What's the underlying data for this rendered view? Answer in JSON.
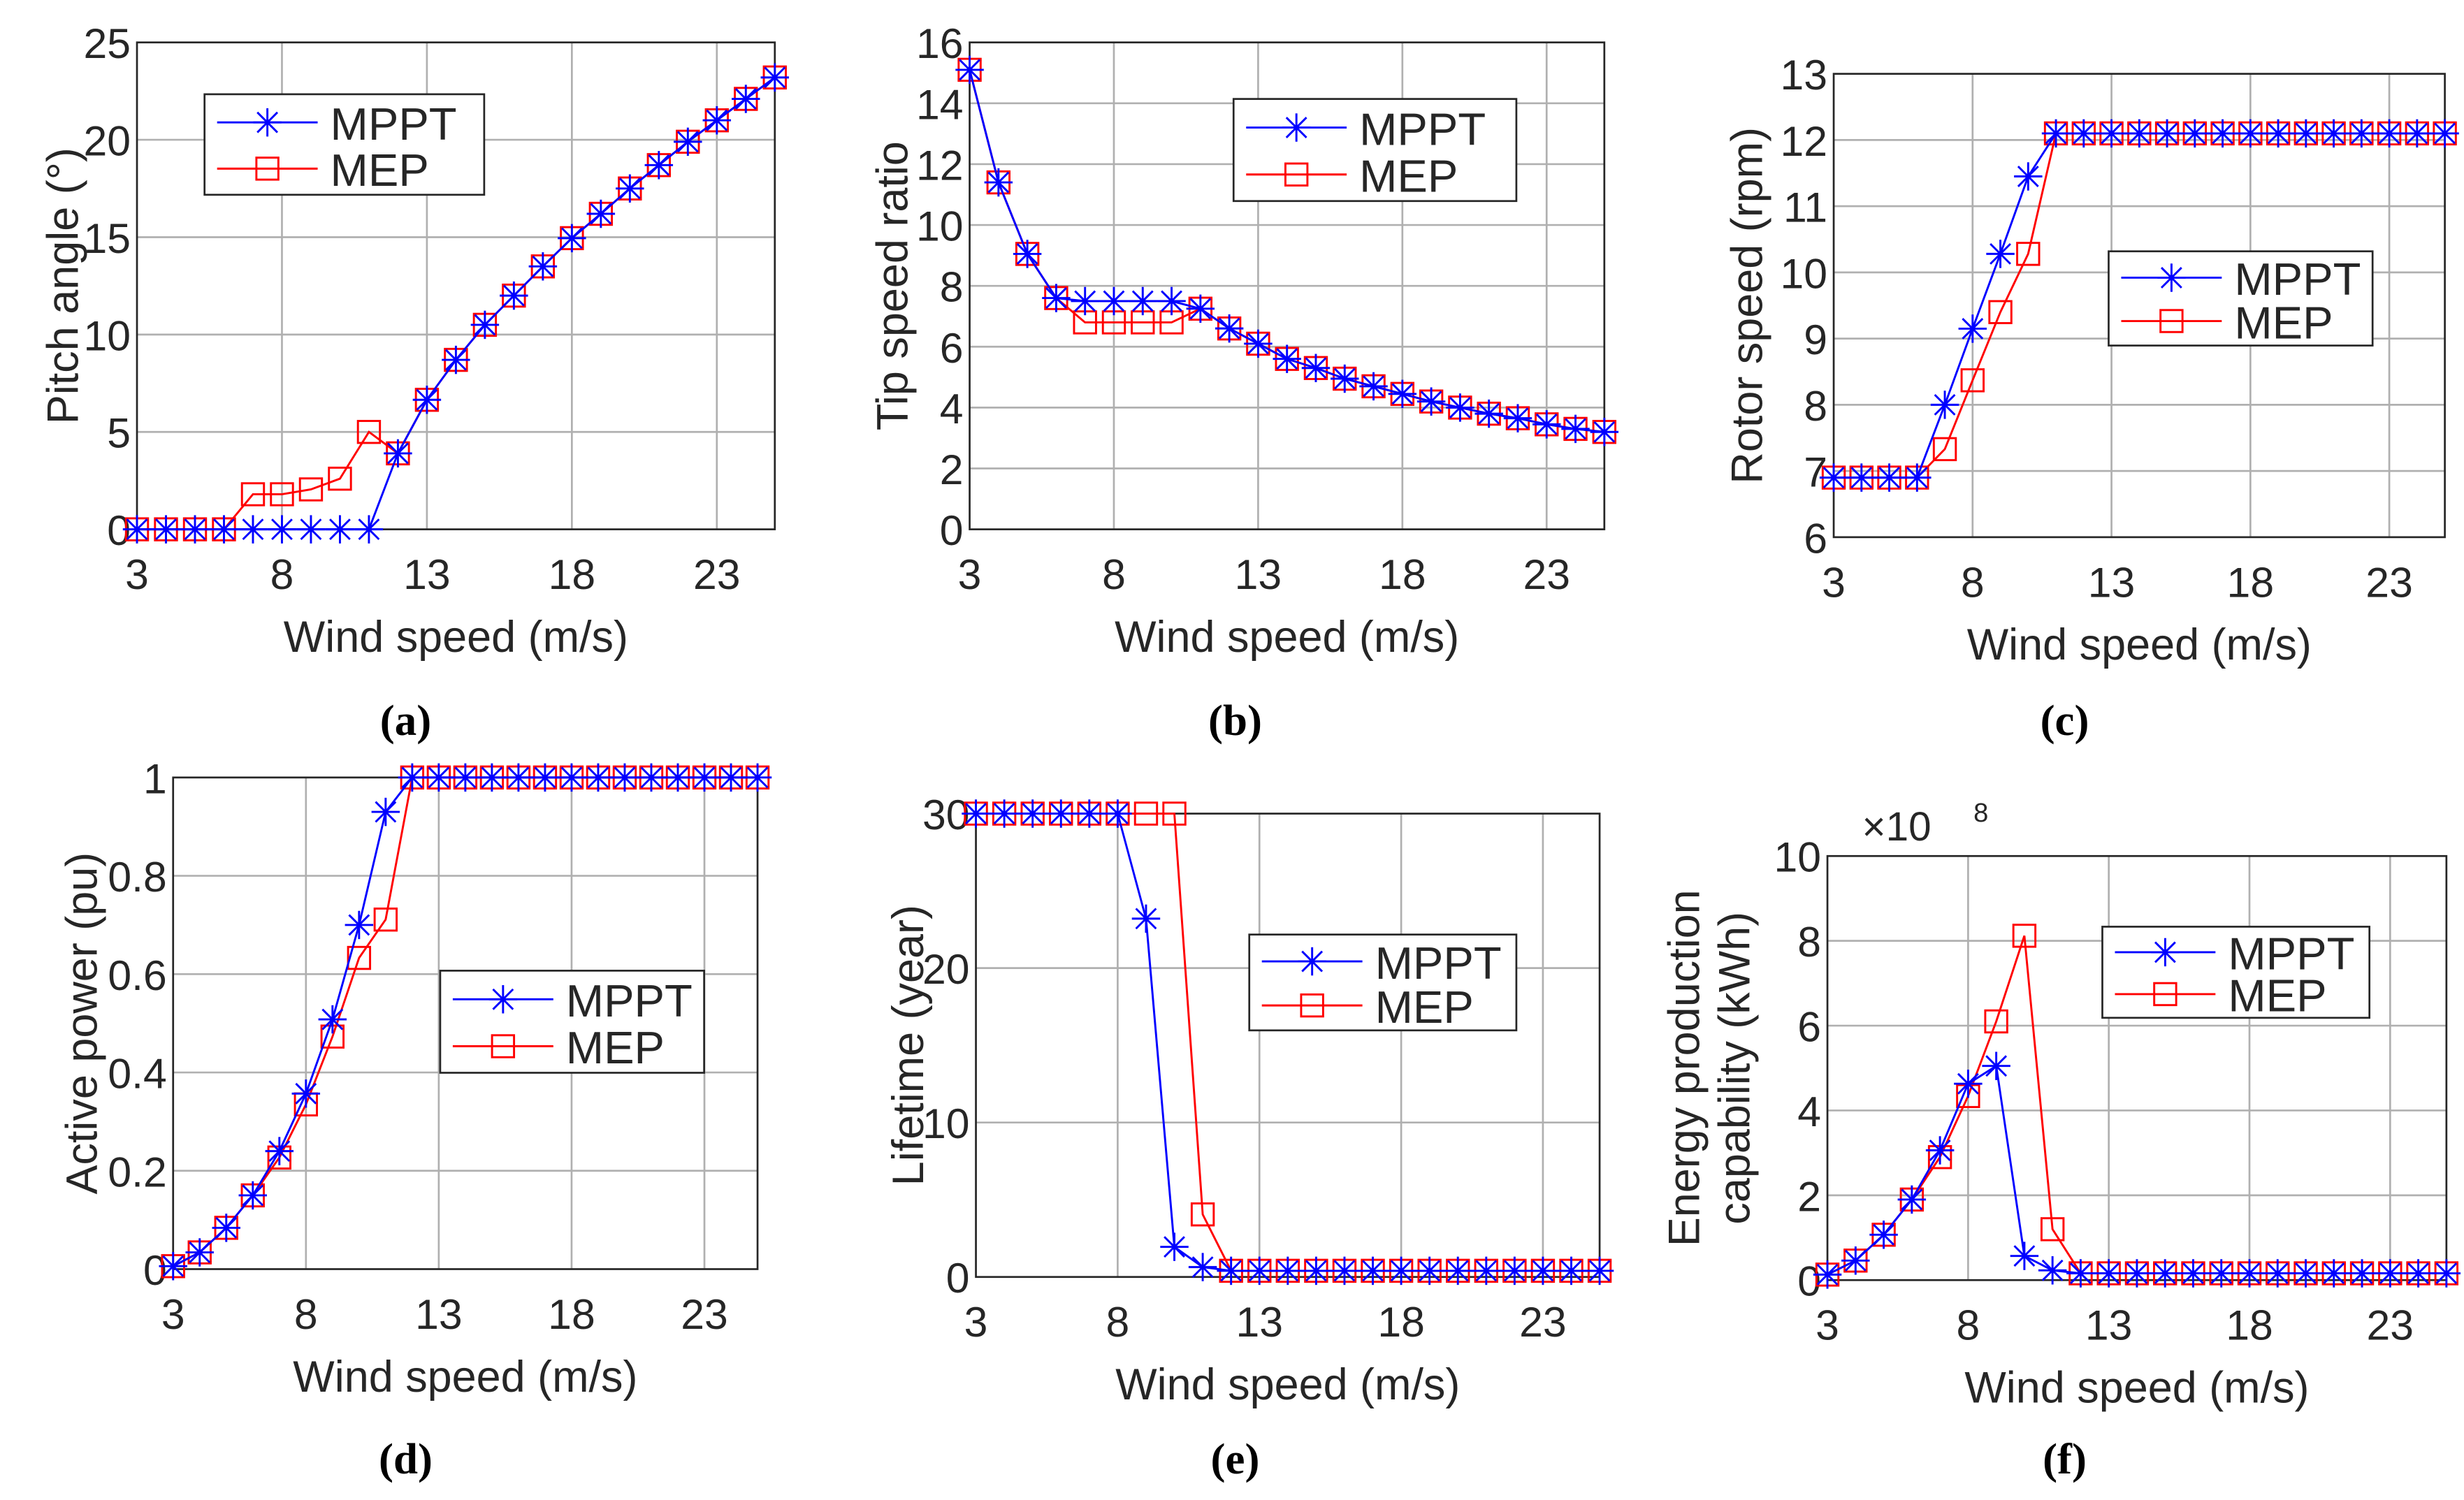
{
  "colors": {
    "MPPT": "#0000ff",
    "MEP": "#ff0000",
    "grid": "#b0b0b0",
    "axis": "#262626"
  },
  "chart_data": [
    {
      "id": "a",
      "caption": "(a)",
      "type": "line",
      "xlabel": "Wind speed (m/s)",
      "ylabel": [
        "Pitch angle (°)"
      ],
      "xlim": [
        3,
        25
      ],
      "ylim": [
        0,
        25
      ],
      "xticks": [
        3,
        8,
        13,
        18,
        23
      ],
      "xtick_labels": [
        "3",
        "8",
        "13",
        "18",
        "23"
      ],
      "yticks": [
        0,
        5,
        10,
        15,
        20,
        25
      ],
      "ytick_labels": [
        "0",
        "5",
        "10",
        "15",
        "20",
        "25"
      ],
      "grid": true,
      "legend_position": "top-left",
      "x": [
        3,
        4,
        5,
        6,
        7,
        8,
        9,
        10,
        11,
        12,
        13,
        14,
        15,
        16,
        17,
        18,
        19,
        20,
        21,
        22,
        23,
        24,
        25
      ],
      "series": [
        {
          "name": "MPPT",
          "marker": "asterisk",
          "values": [
            0,
            0,
            0,
            0,
            0,
            0,
            0,
            0,
            0,
            3.9,
            6.65,
            8.7,
            10.5,
            12.0,
            13.5,
            14.95,
            16.2,
            17.5,
            18.7,
            19.9,
            21.0,
            22.1,
            23.2
          ]
        },
        {
          "name": "MEP",
          "marker": "square",
          "values": [
            0,
            0,
            0,
            0,
            1.8,
            1.8,
            2.05,
            2.6,
            5.0,
            3.9,
            6.65,
            8.7,
            10.5,
            12.0,
            13.5,
            14.95,
            16.2,
            17.5,
            18.7,
            19.9,
            21.0,
            22.1,
            23.2
          ]
        }
      ]
    },
    {
      "id": "b",
      "caption": "(b)",
      "type": "line",
      "xlabel": "Wind speed (m/s)",
      "ylabel": [
        "Tip speed ratio"
      ],
      "xlim": [
        3,
        25
      ],
      "ylim": [
        0,
        16
      ],
      "xticks": [
        3,
        8,
        13,
        18,
        23
      ],
      "xtick_labels": [
        "3",
        "8",
        "13",
        "18",
        "23"
      ],
      "yticks": [
        0,
        2,
        4,
        6,
        8,
        10,
        12,
        14,
        16
      ],
      "ytick_labels": [
        "0",
        "2",
        "4",
        "6",
        "8",
        "10",
        "12",
        "14",
        "16"
      ],
      "grid": true,
      "legend_position": "top-right",
      "x": [
        3,
        4,
        5,
        6,
        7,
        8,
        9,
        10,
        11,
        12,
        13,
        14,
        15,
        16,
        17,
        18,
        19,
        20,
        21,
        22,
        23,
        24,
        25
      ],
      "series": [
        {
          "name": "MPPT",
          "marker": "asterisk",
          "values": [
            15.1,
            11.4,
            9.05,
            7.6,
            7.5,
            7.5,
            7.5,
            7.5,
            7.25,
            6.6,
            6.1,
            5.6,
            5.3,
            4.95,
            4.7,
            4.45,
            4.2,
            4.0,
            3.8,
            3.65,
            3.45,
            3.3,
            3.2
          ]
        },
        {
          "name": "MEP",
          "marker": "square",
          "values": [
            15.1,
            11.4,
            9.05,
            7.6,
            6.8,
            6.8,
            6.8,
            6.8,
            7.25,
            6.6,
            6.1,
            5.6,
            5.3,
            4.95,
            4.7,
            4.45,
            4.2,
            4.0,
            3.8,
            3.65,
            3.45,
            3.3,
            3.2
          ]
        }
      ]
    },
    {
      "id": "c",
      "caption": "(c)",
      "type": "line",
      "xlabel": "Wind speed (m/s)",
      "ylabel": [
        "Rotor speed (rpm)"
      ],
      "xlim": [
        3,
        25
      ],
      "ylim": [
        6,
        13
      ],
      "xticks": [
        3,
        8,
        13,
        18,
        23
      ],
      "xtick_labels": [
        "3",
        "8",
        "13",
        "18",
        "23"
      ],
      "yticks": [
        6,
        7,
        8,
        9,
        10,
        11,
        12,
        13
      ],
      "ytick_labels": [
        "6",
        "7",
        "8",
        "9",
        "10",
        "11",
        "12",
        "13"
      ],
      "grid": true,
      "legend_position": "middle-right",
      "x": [
        3,
        4,
        5,
        6,
        7,
        8,
        9,
        10,
        11,
        12,
        13,
        14,
        15,
        16,
        17,
        18,
        19,
        20,
        21,
        22,
        23,
        24,
        25
      ],
      "series": [
        {
          "name": "MPPT",
          "marker": "asterisk",
          "values": [
            6.9,
            6.9,
            6.9,
            6.9,
            8.0,
            9.15,
            10.28,
            11.45,
            12.1,
            12.1,
            12.1,
            12.1,
            12.1,
            12.1,
            12.1,
            12.1,
            12.1,
            12.1,
            12.1,
            12.1,
            12.1,
            12.1,
            12.1
          ]
        },
        {
          "name": "MEP",
          "marker": "square",
          "values": [
            6.9,
            6.9,
            6.9,
            6.9,
            7.33,
            8.37,
            9.4,
            10.28,
            12.1,
            12.1,
            12.1,
            12.1,
            12.1,
            12.1,
            12.1,
            12.1,
            12.1,
            12.1,
            12.1,
            12.1,
            12.1,
            12.1,
            12.1
          ]
        }
      ]
    },
    {
      "id": "d",
      "caption": "(d)",
      "type": "line",
      "xlabel": "Wind speed (m/s)",
      "ylabel": [
        "Active power (pu)"
      ],
      "xlim": [
        3,
        25
      ],
      "ylim": [
        0,
        1
      ],
      "xticks": [
        3,
        8,
        13,
        18,
        23
      ],
      "xtick_labels": [
        "3",
        "8",
        "13",
        "18",
        "23"
      ],
      "yticks": [
        0,
        0.2,
        0.4,
        0.6,
        0.8,
        1
      ],
      "ytick_labels": [
        "0",
        "0.2",
        "0.4",
        "0.6",
        "0.8",
        "1"
      ],
      "grid": true,
      "legend_position": "middle-right",
      "x": [
        3,
        4,
        5,
        6,
        7,
        8,
        9,
        10,
        11,
        12,
        13,
        14,
        15,
        16,
        17,
        18,
        19,
        20,
        21,
        22,
        23,
        24,
        25
      ],
      "series": [
        {
          "name": "MPPT",
          "marker": "asterisk",
          "values": [
            0.006,
            0.034,
            0.084,
            0.15,
            0.24,
            0.357,
            0.508,
            0.7,
            0.93,
            1,
            1,
            1,
            1,
            1,
            1,
            1,
            1,
            1,
            1,
            1,
            1,
            1,
            1
          ]
        },
        {
          "name": "MEP",
          "marker": "square",
          "values": [
            0.006,
            0.034,
            0.084,
            0.15,
            0.227,
            0.335,
            0.473,
            0.633,
            0.711,
            1,
            1,
            1,
            1,
            1,
            1,
            1,
            1,
            1,
            1,
            1,
            1,
            1,
            1
          ]
        }
      ]
    },
    {
      "id": "e",
      "caption": "(e)",
      "type": "line",
      "xlabel": "Wind speed (m/s)",
      "ylabel": [
        "Lifetime (year)"
      ],
      "xlim": [
        3,
        25
      ],
      "ylim": [
        0,
        30
      ],
      "xticks": [
        3,
        8,
        13,
        18,
        23
      ],
      "xtick_labels": [
        "3",
        "8",
        "13",
        "18",
        "23"
      ],
      "yticks": [
        0,
        10,
        20,
        30
      ],
      "ytick_labels": [
        "0",
        "10",
        "20",
        "30"
      ],
      "grid": true,
      "legend_position": "middle-right",
      "x": [
        3,
        4,
        5,
        6,
        7,
        8,
        9,
        10,
        11,
        12,
        13,
        14,
        15,
        16,
        17,
        18,
        19,
        20,
        21,
        22,
        23,
        24,
        25
      ],
      "series": [
        {
          "name": "MPPT",
          "marker": "asterisk",
          "values": [
            30,
            30,
            30,
            30,
            30,
            30,
            23.2,
            1.95,
            0.64,
            0.4,
            0.4,
            0.4,
            0.4,
            0.4,
            0.4,
            0.4,
            0.4,
            0.4,
            0.4,
            0.4,
            0.4,
            0.4,
            0.4
          ]
        },
        {
          "name": "MEP",
          "marker": "square",
          "values": [
            30,
            30,
            30,
            30,
            30,
            30,
            30,
            30,
            4.05,
            0.4,
            0.4,
            0.4,
            0.4,
            0.4,
            0.4,
            0.4,
            0.4,
            0.4,
            0.4,
            0.4,
            0.4,
            0.4,
            0.4
          ]
        }
      ]
    },
    {
      "id": "f",
      "caption": "(f)",
      "type": "line",
      "xlabel": "Wind speed (m/s)",
      "ylabel": [
        "Energy production",
        "capability (kWh)"
      ],
      "y_multiplier": "×10",
      "y_exponent": "8",
      "xlim": [
        3,
        25
      ],
      "ylim": [
        0,
        10
      ],
      "xticks": [
        3,
        8,
        13,
        18,
        23
      ],
      "xtick_labels": [
        "3",
        "8",
        "13",
        "18",
        "23"
      ],
      "yticks": [
        0,
        2,
        4,
        6,
        8,
        10
      ],
      "ytick_labels": [
        "0",
        "2",
        "4",
        "6",
        "8",
        "10"
      ],
      "grid": true,
      "legend_position": "top-right",
      "x": [
        3,
        4,
        5,
        6,
        7,
        8,
        9,
        10,
        11,
        12,
        13,
        14,
        15,
        16,
        17,
        18,
        19,
        20,
        21,
        22,
        23,
        24,
        25
      ],
      "series": [
        {
          "name": "MPPT",
          "marker": "asterisk",
          "values": [
            0.13,
            0.46,
            1.07,
            1.9,
            3.06,
            4.63,
            5.05,
            0.57,
            0.23,
            0.16,
            0.16,
            0.16,
            0.16,
            0.16,
            0.16,
            0.16,
            0.16,
            0.16,
            0.16,
            0.16,
            0.16,
            0.16,
            0.16
          ]
        },
        {
          "name": "MEP",
          "marker": "square",
          "values": [
            0.13,
            0.46,
            1.07,
            1.9,
            2.9,
            4.34,
            6.1,
            8.12,
            1.2,
            0.16,
            0.16,
            0.16,
            0.16,
            0.16,
            0.16,
            0.16,
            0.16,
            0.16,
            0.16,
            0.16,
            0.16,
            0.16,
            0.16
          ]
        }
      ]
    }
  ]
}
